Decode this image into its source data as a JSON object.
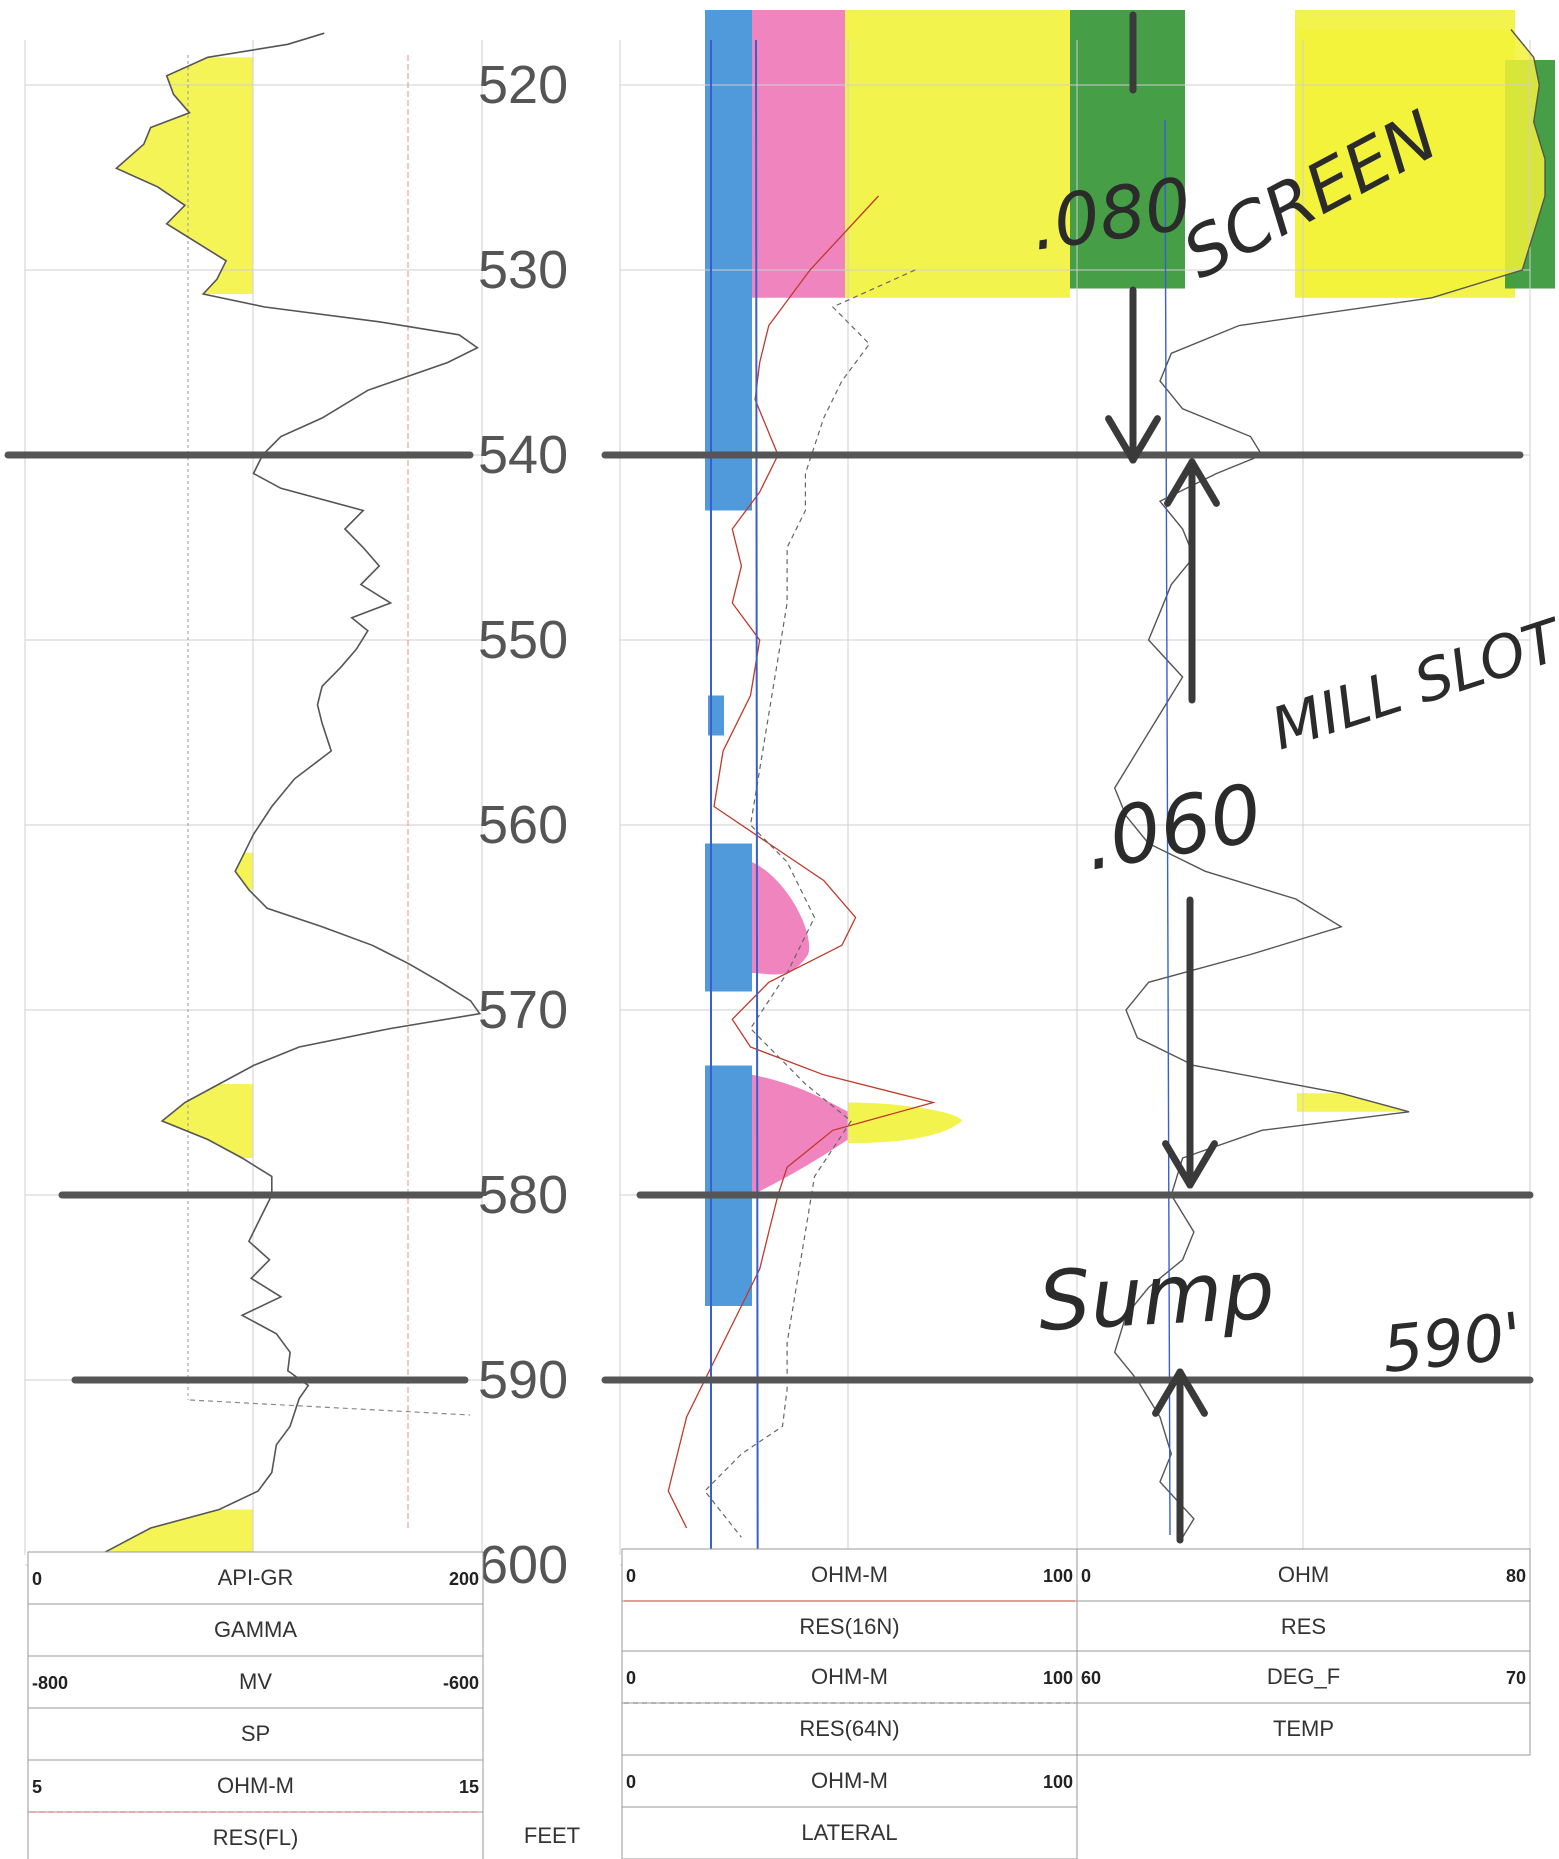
{
  "chart_data": {
    "type": "line",
    "title": "",
    "depth_axis": {
      "unit_label": "FEET",
      "range": [
        517,
        600
      ],
      "ticks": [
        "520",
        "530",
        "540",
        "550",
        "560",
        "570",
        "580",
        "590",
        "600"
      ]
    },
    "tracks": [
      {
        "id": "track1",
        "curves": [
          {
            "name": "GAMMA",
            "unit": "API-GR",
            "scale_left": "0",
            "scale_right": "200",
            "color": "#555555",
            "style": "solid"
          },
          {
            "name": "SP",
            "unit": "MV",
            "scale_left": "-800",
            "scale_right": "-600",
            "color": "#777777",
            "style": "dashed"
          },
          {
            "name": "RES(FL)",
            "unit": "OHM-M",
            "scale_left": "5",
            "scale_right": "15",
            "color": "#d9534f",
            "style": "dashed"
          }
        ]
      },
      {
        "id": "track2",
        "curves": [
          {
            "name": "RES(16N)",
            "unit": "OHM-M",
            "scale_left": "0",
            "scale_right": "100",
            "color": "#c0392b",
            "style": "solid"
          },
          {
            "name": "RES(64N)",
            "unit": "OHM-M",
            "scale_left": "0",
            "scale_right": "100",
            "color": "#666666",
            "style": "dashed"
          },
          {
            "name": "LATERAL",
            "unit": "OHM-M",
            "scale_left": "0",
            "scale_right": "100",
            "color": "#3a5fcd",
            "style": "solid"
          }
        ]
      },
      {
        "id": "track3",
        "curves": [
          {
            "name": "RES",
            "unit": "OHM",
            "scale_left": "0",
            "scale_right": "80",
            "color": "#555555",
            "style": "solid"
          },
          {
            "name": "TEMP",
            "unit": "DEG_F",
            "scale_left": "60",
            "scale_right": "70",
            "color": "#3a5fcd",
            "style": "solid"
          }
        ]
      }
    ],
    "gamma_curve": [
      [
        517.2,
        131
      ],
      [
        517.8,
        115
      ],
      [
        518.5,
        80
      ],
      [
        519.5,
        62
      ],
      [
        520.5,
        65
      ],
      [
        521.5,
        72
      ],
      [
        522.3,
        55
      ],
      [
        523.2,
        52
      ],
      [
        524.5,
        40
      ],
      [
        525.5,
        58
      ],
      [
        526.5,
        70
      ],
      [
        527.5,
        62
      ],
      [
        528.5,
        75
      ],
      [
        529.5,
        88
      ],
      [
        530.5,
        84
      ],
      [
        531.3,
        78
      ],
      [
        532.0,
        105
      ],
      [
        532.8,
        155
      ],
      [
        533.5,
        190
      ],
      [
        534.2,
        198
      ],
      [
        535.0,
        185
      ],
      [
        536.5,
        150
      ],
      [
        538.0,
        130
      ],
      [
        539.0,
        112
      ],
      [
        540.0,
        104
      ],
      [
        541.0,
        100
      ],
      [
        541.8,
        112
      ],
      [
        543.0,
        148
      ],
      [
        544.0,
        140
      ],
      [
        545.0,
        148
      ],
      [
        546.0,
        155
      ],
      [
        547.0,
        147
      ],
      [
        548.0,
        160
      ],
      [
        548.8,
        143
      ],
      [
        549.5,
        150
      ],
      [
        550.5,
        145
      ],
      [
        551.5,
        138
      ],
      [
        552.5,
        130
      ],
      [
        553.5,
        128
      ],
      [
        554.5,
        130
      ],
      [
        556.0,
        134
      ],
      [
        557.5,
        118
      ],
      [
        559.0,
        108
      ],
      [
        560.5,
        100
      ],
      [
        561.5,
        96
      ],
      [
        562.5,
        92
      ],
      [
        563.5,
        98
      ],
      [
        564.5,
        106
      ],
      [
        565.5,
        130
      ],
      [
        566.5,
        152
      ],
      [
        567.5,
        168
      ],
      [
        568.5,
        182
      ],
      [
        569.5,
        195
      ],
      [
        570.2,
        199
      ],
      [
        571.0,
        160
      ],
      [
        572.0,
        120
      ],
      [
        573.0,
        100
      ],
      [
        574.0,
        85
      ],
      [
        575.0,
        70
      ],
      [
        576.0,
        60
      ],
      [
        577.0,
        80
      ],
      [
        578.0,
        95
      ],
      [
        579.0,
        108
      ],
      [
        580.0,
        108
      ],
      [
        581.0,
        104
      ],
      [
        582.5,
        98
      ],
      [
        583.5,
        107
      ],
      [
        584.5,
        99
      ],
      [
        585.5,
        112
      ],
      [
        586.5,
        95
      ],
      [
        587.5,
        110
      ],
      [
        588.5,
        116
      ],
      [
        589.5,
        115
      ],
      [
        590.3,
        124
      ],
      [
        591.0,
        120
      ],
      [
        592.5,
        116
      ],
      [
        593.5,
        110
      ],
      [
        595.0,
        108
      ],
      [
        596.0,
        102
      ],
      [
        597.0,
        85
      ],
      [
        598.0,
        55
      ],
      [
        599.5,
        32
      ]
    ],
    "res16n_curve": [
      [
        526.0,
        50
      ],
      [
        530.0,
        35
      ],
      [
        533.0,
        26
      ],
      [
        535.0,
        24
      ],
      [
        537.0,
        23
      ],
      [
        540.0,
        28
      ],
      [
        542.0,
        24
      ],
      [
        544.0,
        18
      ],
      [
        546.0,
        20
      ],
      [
        548.0,
        18
      ],
      [
        550.0,
        24
      ],
      [
        553.0,
        22
      ],
      [
        556.0,
        16
      ],
      [
        559.0,
        14
      ],
      [
        561.0,
        26
      ],
      [
        563.0,
        38
      ],
      [
        565.0,
        45
      ],
      [
        566.5,
        42
      ],
      [
        568.5,
        26
      ],
      [
        570.5,
        18
      ],
      [
        572.0,
        22
      ],
      [
        573.5,
        38
      ],
      [
        575.0,
        62
      ],
      [
        576.5,
        40
      ],
      [
        578.5,
        30
      ],
      [
        580.0,
        28
      ],
      [
        582.0,
        26
      ],
      [
        584.0,
        24
      ],
      [
        586.0,
        20
      ],
      [
        588.0,
        16
      ],
      [
        590.0,
        12
      ],
      [
        592.0,
        8
      ],
      [
        594.0,
        6
      ],
      [
        596.0,
        4
      ],
      [
        598.0,
        8
      ]
    ],
    "res64n_curve": [
      [
        530.0,
        58
      ],
      [
        532.0,
        40
      ],
      [
        534.0,
        48
      ],
      [
        536.0,
        42
      ],
      [
        538.0,
        38
      ],
      [
        541.0,
        34
      ],
      [
        543.0,
        34
      ],
      [
        545.0,
        30
      ],
      [
        548.0,
        30
      ],
      [
        551.0,
        28
      ],
      [
        554.0,
        26
      ],
      [
        557.0,
        24
      ],
      [
        560.0,
        22
      ],
      [
        562.0,
        30
      ],
      [
        565.0,
        36
      ],
      [
        568.0,
        30
      ],
      [
        571.0,
        22
      ],
      [
        574.0,
        34
      ],
      [
        576.0,
        44
      ],
      [
        579.0,
        36
      ],
      [
        582.0,
        34
      ],
      [
        585.0,
        32
      ],
      [
        588.0,
        30
      ],
      [
        590.5,
        30
      ],
      [
        592.5,
        29
      ],
      [
        594.0,
        20
      ],
      [
        596.0,
        12
      ],
      [
        598.5,
        20
      ]
    ],
    "res_curve_track3": [
      [
        517.0,
        74
      ],
      [
        518.5,
        78
      ],
      [
        520.0,
        79
      ],
      [
        522.0,
        78
      ],
      [
        524.0,
        80
      ],
      [
        526.0,
        80
      ],
      [
        528.0,
        78
      ],
      [
        530.0,
        76
      ],
      [
        531.5,
        60
      ],
      [
        533.0,
        26
      ],
      [
        534.5,
        14
      ],
      [
        536.0,
        12
      ],
      [
        537.5,
        16
      ],
      [
        539.0,
        28
      ],
      [
        540.0,
        30
      ],
      [
        541.0,
        22
      ],
      [
        542.5,
        12
      ],
      [
        544.0,
        16
      ],
      [
        545.5,
        18
      ],
      [
        547.0,
        14
      ],
      [
        548.5,
        12
      ],
      [
        550.0,
        10
      ],
      [
        552.0,
        16
      ],
      [
        554.0,
        12
      ],
      [
        556.0,
        8
      ],
      [
        558.0,
        4
      ],
      [
        559.5,
        6
      ],
      [
        561.0,
        10
      ],
      [
        562.5,
        20
      ],
      [
        564.0,
        36
      ],
      [
        565.5,
        44
      ],
      [
        567.0,
        28
      ],
      [
        568.5,
        10
      ],
      [
        570.0,
        6
      ],
      [
        571.5,
        8
      ],
      [
        573.0,
        18
      ],
      [
        574.5,
        44
      ],
      [
        575.5,
        56
      ],
      [
        576.5,
        30
      ],
      [
        578.0,
        16
      ],
      [
        580.0,
        14
      ],
      [
        582.0,
        18
      ],
      [
        583.5,
        16
      ],
      [
        585.0,
        10
      ],
      [
        586.5,
        6
      ],
      [
        588.5,
        4
      ],
      [
        590.0,
        8
      ],
      [
        592.0,
        12
      ],
      [
        594.0,
        14
      ],
      [
        595.5,
        12
      ],
      [
        597.5,
        18
      ],
      [
        598.5,
        16
      ]
    ],
    "depth_markers": [
      540,
      580,
      590
    ],
    "annotations": [
      {
        "text": ".080",
        "depth": 527
      },
      {
        "text": "SCREEN",
        "depth": 524
      },
      {
        "text": ".060",
        "depth": 562
      },
      {
        "text": "MILL SLOT",
        "depth": 560
      },
      {
        "text": "Sump",
        "depth": 586
      },
      {
        "text": "590'",
        "depth": 590
      }
    ]
  }
}
